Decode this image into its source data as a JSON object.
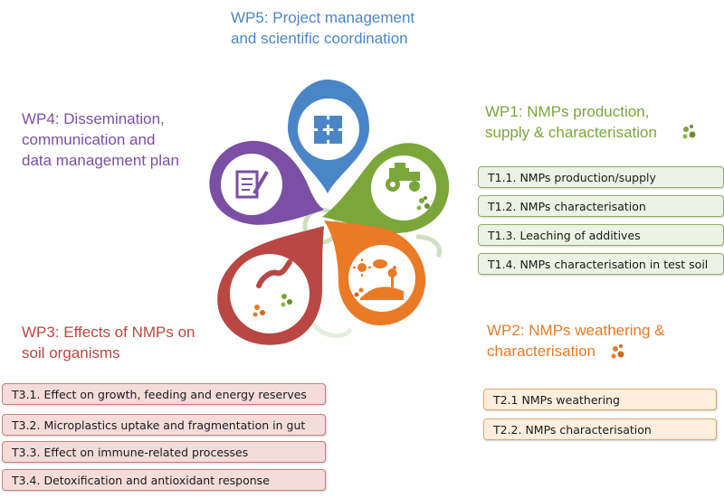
{
  "wp5": {
    "line1": "WP5: Project management",
    "line2": "and scientific coordination",
    "color": "#4a86c7"
  },
  "wp4": {
    "line1": "WP4: Dissemination,",
    "line2": "communication and",
    "line3": "data management plan",
    "color": "#7b4fa3"
  },
  "wp1": {
    "line1": "WP1: NMPs production,",
    "line2": "supply & characterisation",
    "color": "#7aa63a",
    "tasks": [
      "T1.1. NMPs production/supply",
      "T1.2. NMPs characterisation",
      "T1.3. Leaching of additives",
      "T1.4. NMPs characterisation in test soil"
    ]
  },
  "wp2": {
    "line1": "WP2: NMPs weathering &",
    "line2": "characterisation",
    "color": "#ea7a25",
    "tasks": [
      "T2.1 NMPs weathering",
      "T2.2. NMPs characterisation"
    ]
  },
  "wp3": {
    "line1": "WP3: Effects of NMPs on",
    "line2": "soil organisms",
    "color": "#b94743",
    "tasks": [
      "T3.1. Effect on growth, feeding and energy reserves",
      "T3.2. Microplastics uptake and fragmentation in gut",
      "T3.3. Effect on immune-related processes",
      "T3.4. Detoxification and antioxidant response"
    ]
  },
  "icons": {
    "wp5": "puzzle-icon",
    "wp4": "document-pen-icon",
    "wp1": "tractor-icon",
    "wp2": "weather-landscape-icon",
    "wp3": "earthworm-icon",
    "particles": "microplastic-particles-icon"
  }
}
